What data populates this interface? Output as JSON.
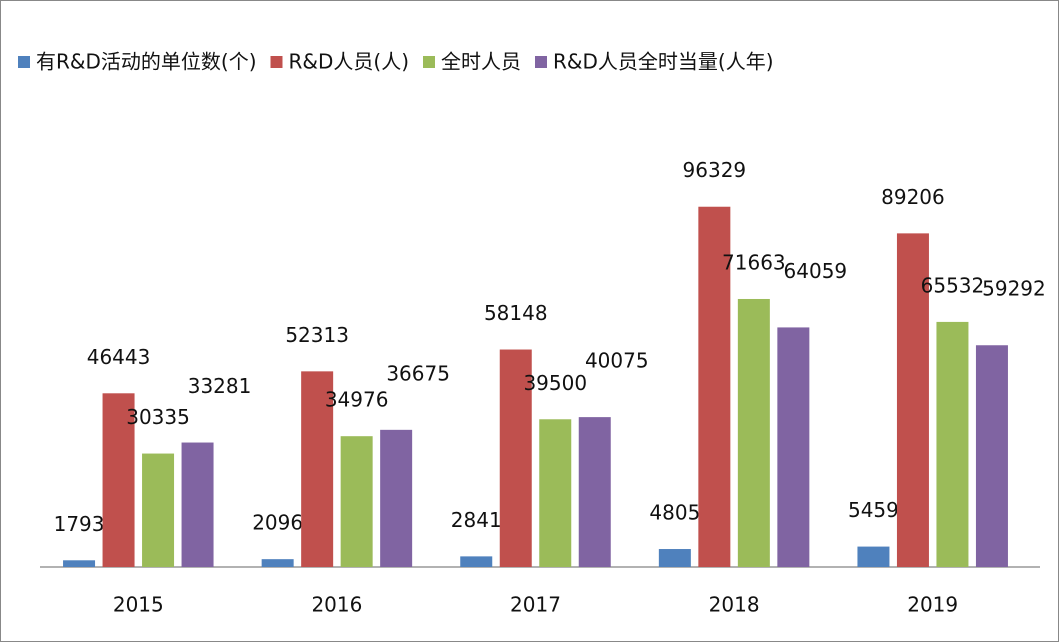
{
  "chart_data": {
    "type": "bar",
    "categories": [
      "2015",
      "2016",
      "2017",
      "2018",
      "2019"
    ],
    "series": [
      {
        "name": "有R&D活动的单位数(个)",
        "color": "#4f81bd",
        "values": [
          1793,
          2096,
          2841,
          4805,
          5459
        ]
      },
      {
        "name": "R&D人员(人)",
        "color": "#c0504d",
        "values": [
          46443,
          52313,
          58148,
          96329,
          89206
        ]
      },
      {
        "name": "全时人员",
        "color": "#9bbb59",
        "values": [
          30335,
          34976,
          39500,
          71663,
          65532
        ]
      },
      {
        "name": "R&D人员全时当量(人年)",
        "color": "#8064a2",
        "values": [
          33281,
          36675,
          40075,
          64059,
          59292
        ]
      }
    ],
    "ylim": [
      0,
      100000
    ],
    "legend": "top"
  }
}
